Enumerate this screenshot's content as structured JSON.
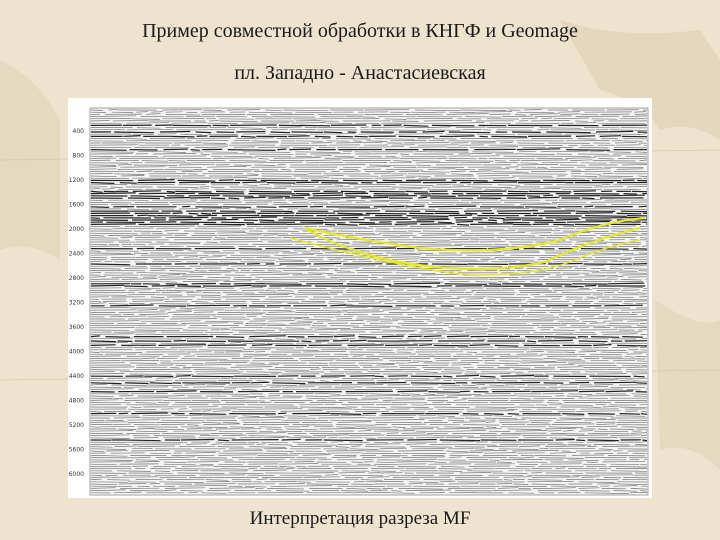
{
  "header": {
    "title": "Пример совместной обработки  в КНГФ и Geomage",
    "subtitle": "пл. Западно - Анастасиевская"
  },
  "figure": {
    "depth_labels": [
      "400",
      "800",
      "1200",
      "1600",
      "2000",
      "2400",
      "2800",
      "3200",
      "3600",
      "4000",
      "4400",
      "4800",
      "5200",
      "5600",
      "6000"
    ],
    "caption": "Интерпретация разреза MF"
  }
}
